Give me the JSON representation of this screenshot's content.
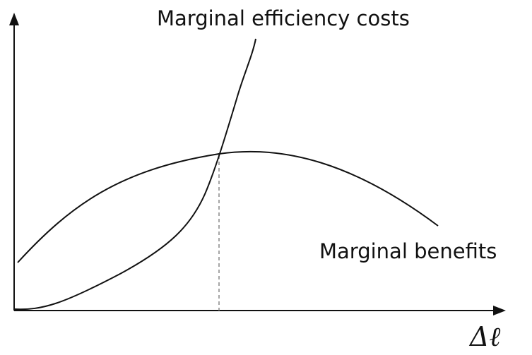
{
  "labels": {
    "costs": "Marginal efficiency costs",
    "benefits": "Marginal benefits",
    "axis": "Δℓ"
  }
}
